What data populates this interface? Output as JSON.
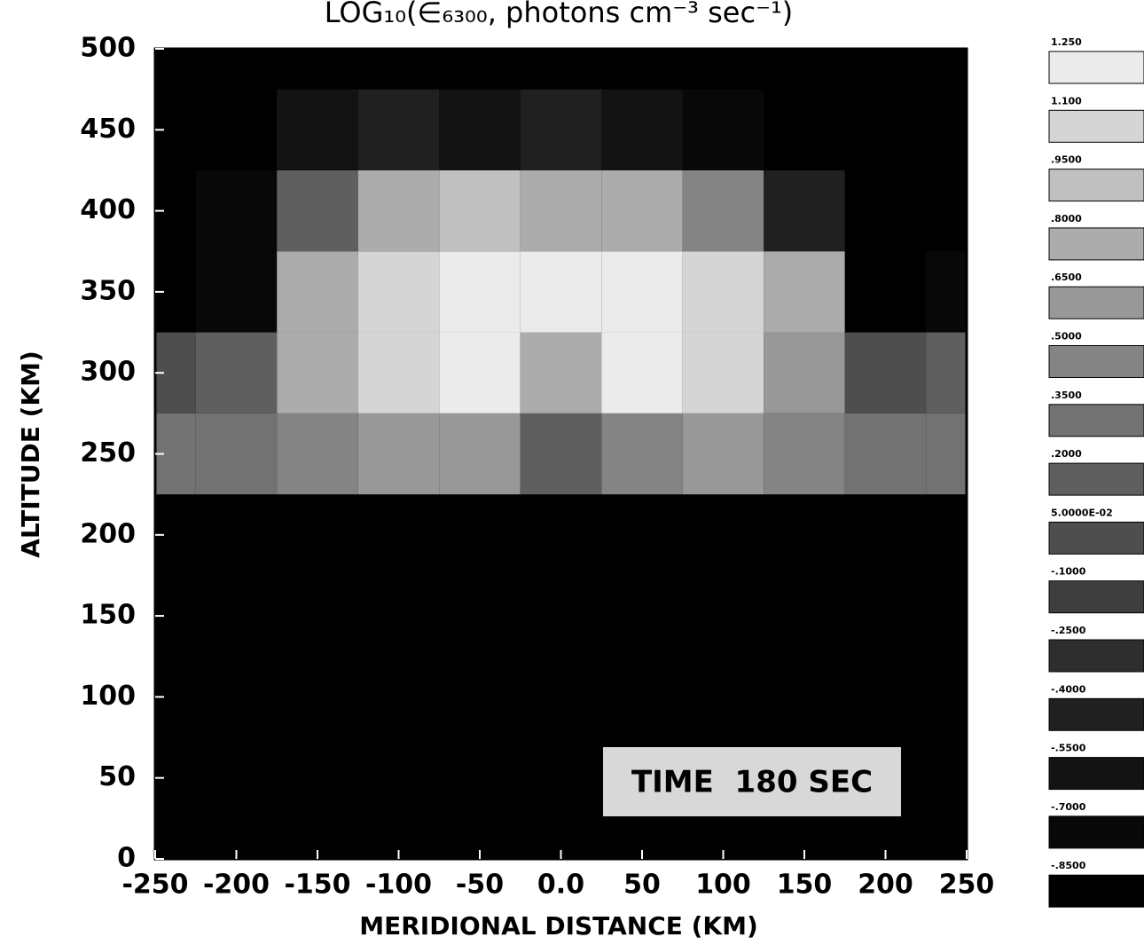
{
  "chart_data": {
    "type": "heatmap",
    "title": "LOG₁₀(∈₆₃₀₀, photons cm⁻³ sec⁻¹)",
    "x_label": "MERIDIONAL DISTANCE (KM)",
    "y_label": "ALTITUDE (KM)",
    "annotation": "TIME  180 SEC",
    "x": [
      -250,
      -200,
      -150,
      -100,
      -50,
      0,
      50,
      100,
      150,
      200,
      250
    ],
    "y": [
      0,
      50,
      100,
      150,
      200,
      250,
      300,
      350,
      400,
      450,
      500
    ],
    "z": [
      [
        -0.85,
        -0.85,
        -0.85,
        -0.85,
        -0.85,
        -0.85,
        -0.85,
        -0.85,
        -0.85,
        -0.85,
        -0.85
      ],
      [
        -0.85,
        -0.85,
        -0.85,
        -0.85,
        -0.85,
        -0.85,
        -0.85,
        -0.85,
        -0.85,
        -0.85,
        -0.85
      ],
      [
        -0.85,
        -0.85,
        -0.85,
        -0.85,
        -0.85,
        -0.85,
        -0.85,
        -0.85,
        -0.85,
        -0.85,
        -0.85
      ],
      [
        -0.85,
        -0.85,
        -0.85,
        -0.85,
        -0.85,
        -0.85,
        -0.85,
        -0.85,
        -0.85,
        -0.85,
        -0.85
      ],
      [
        -0.85,
        -0.85,
        -0.85,
        -0.85,
        -0.85,
        -0.85,
        -0.85,
        -0.85,
        -0.85,
        -0.85,
        -0.85
      ],
      [
        0.35,
        0.35,
        0.5,
        0.65,
        0.65,
        0.2,
        0.5,
        0.65,
        0.5,
        0.35,
        0.35
      ],
      [
        0.05,
        0.2,
        0.8,
        1.1,
        1.25,
        0.8,
        1.25,
        1.1,
        0.65,
        0.05,
        0.2
      ],
      [
        -0.85,
        -0.7,
        0.8,
        1.1,
        1.25,
        1.25,
        1.25,
        1.1,
        0.8,
        -0.85,
        -0.7
      ],
      [
        -0.85,
        -0.7,
        0.2,
        0.8,
        0.95,
        0.8,
        0.8,
        0.5,
        -0.4,
        -0.85,
        -0.85
      ],
      [
        -0.85,
        -0.85,
        -0.55,
        -0.4,
        -0.55,
        -0.4,
        -0.55,
        -0.7,
        -0.85,
        -0.85,
        -0.85
      ],
      [
        -0.85,
        -0.85,
        -0.85,
        -0.85,
        -0.85,
        -0.85,
        -0.85,
        -0.85,
        -0.85,
        -0.85,
        -0.85
      ]
    ],
    "levels": [
      {
        "value": 1.25,
        "label": "1.250"
      },
      {
        "value": 1.1,
        "label": "1.100"
      },
      {
        "value": 0.95,
        "label": ".9500"
      },
      {
        "value": 0.8,
        "label": ".8000"
      },
      {
        "value": 0.65,
        "label": ".6500"
      },
      {
        "value": 0.5,
        "label": ".5000"
      },
      {
        "value": 0.35,
        "label": ".3500"
      },
      {
        "value": 0.2,
        "label": ".2000"
      },
      {
        "value": 0.05,
        "label": "5.0000E-02"
      },
      {
        "value": -0.1,
        "label": "-.1000"
      },
      {
        "value": -0.25,
        "label": "-.2500"
      },
      {
        "value": -0.4,
        "label": "-.4000"
      },
      {
        "value": -0.55,
        "label": "-.5500"
      },
      {
        "value": -0.7,
        "label": "-.7000"
      },
      {
        "value": -0.85,
        "label": "-.8500"
      }
    ],
    "xlim": [
      -250,
      250
    ],
    "ylim": [
      0,
      500
    ],
    "xticks": [
      -250,
      -200,
      -150,
      -100,
      -50,
      {
        "value": 0,
        "label": "0.0"
      },
      50,
      100,
      150,
      200,
      250
    ],
    "yticks": [
      0,
      50,
      100,
      150,
      200,
      250,
      300,
      350,
      400,
      450,
      500
    ]
  }
}
